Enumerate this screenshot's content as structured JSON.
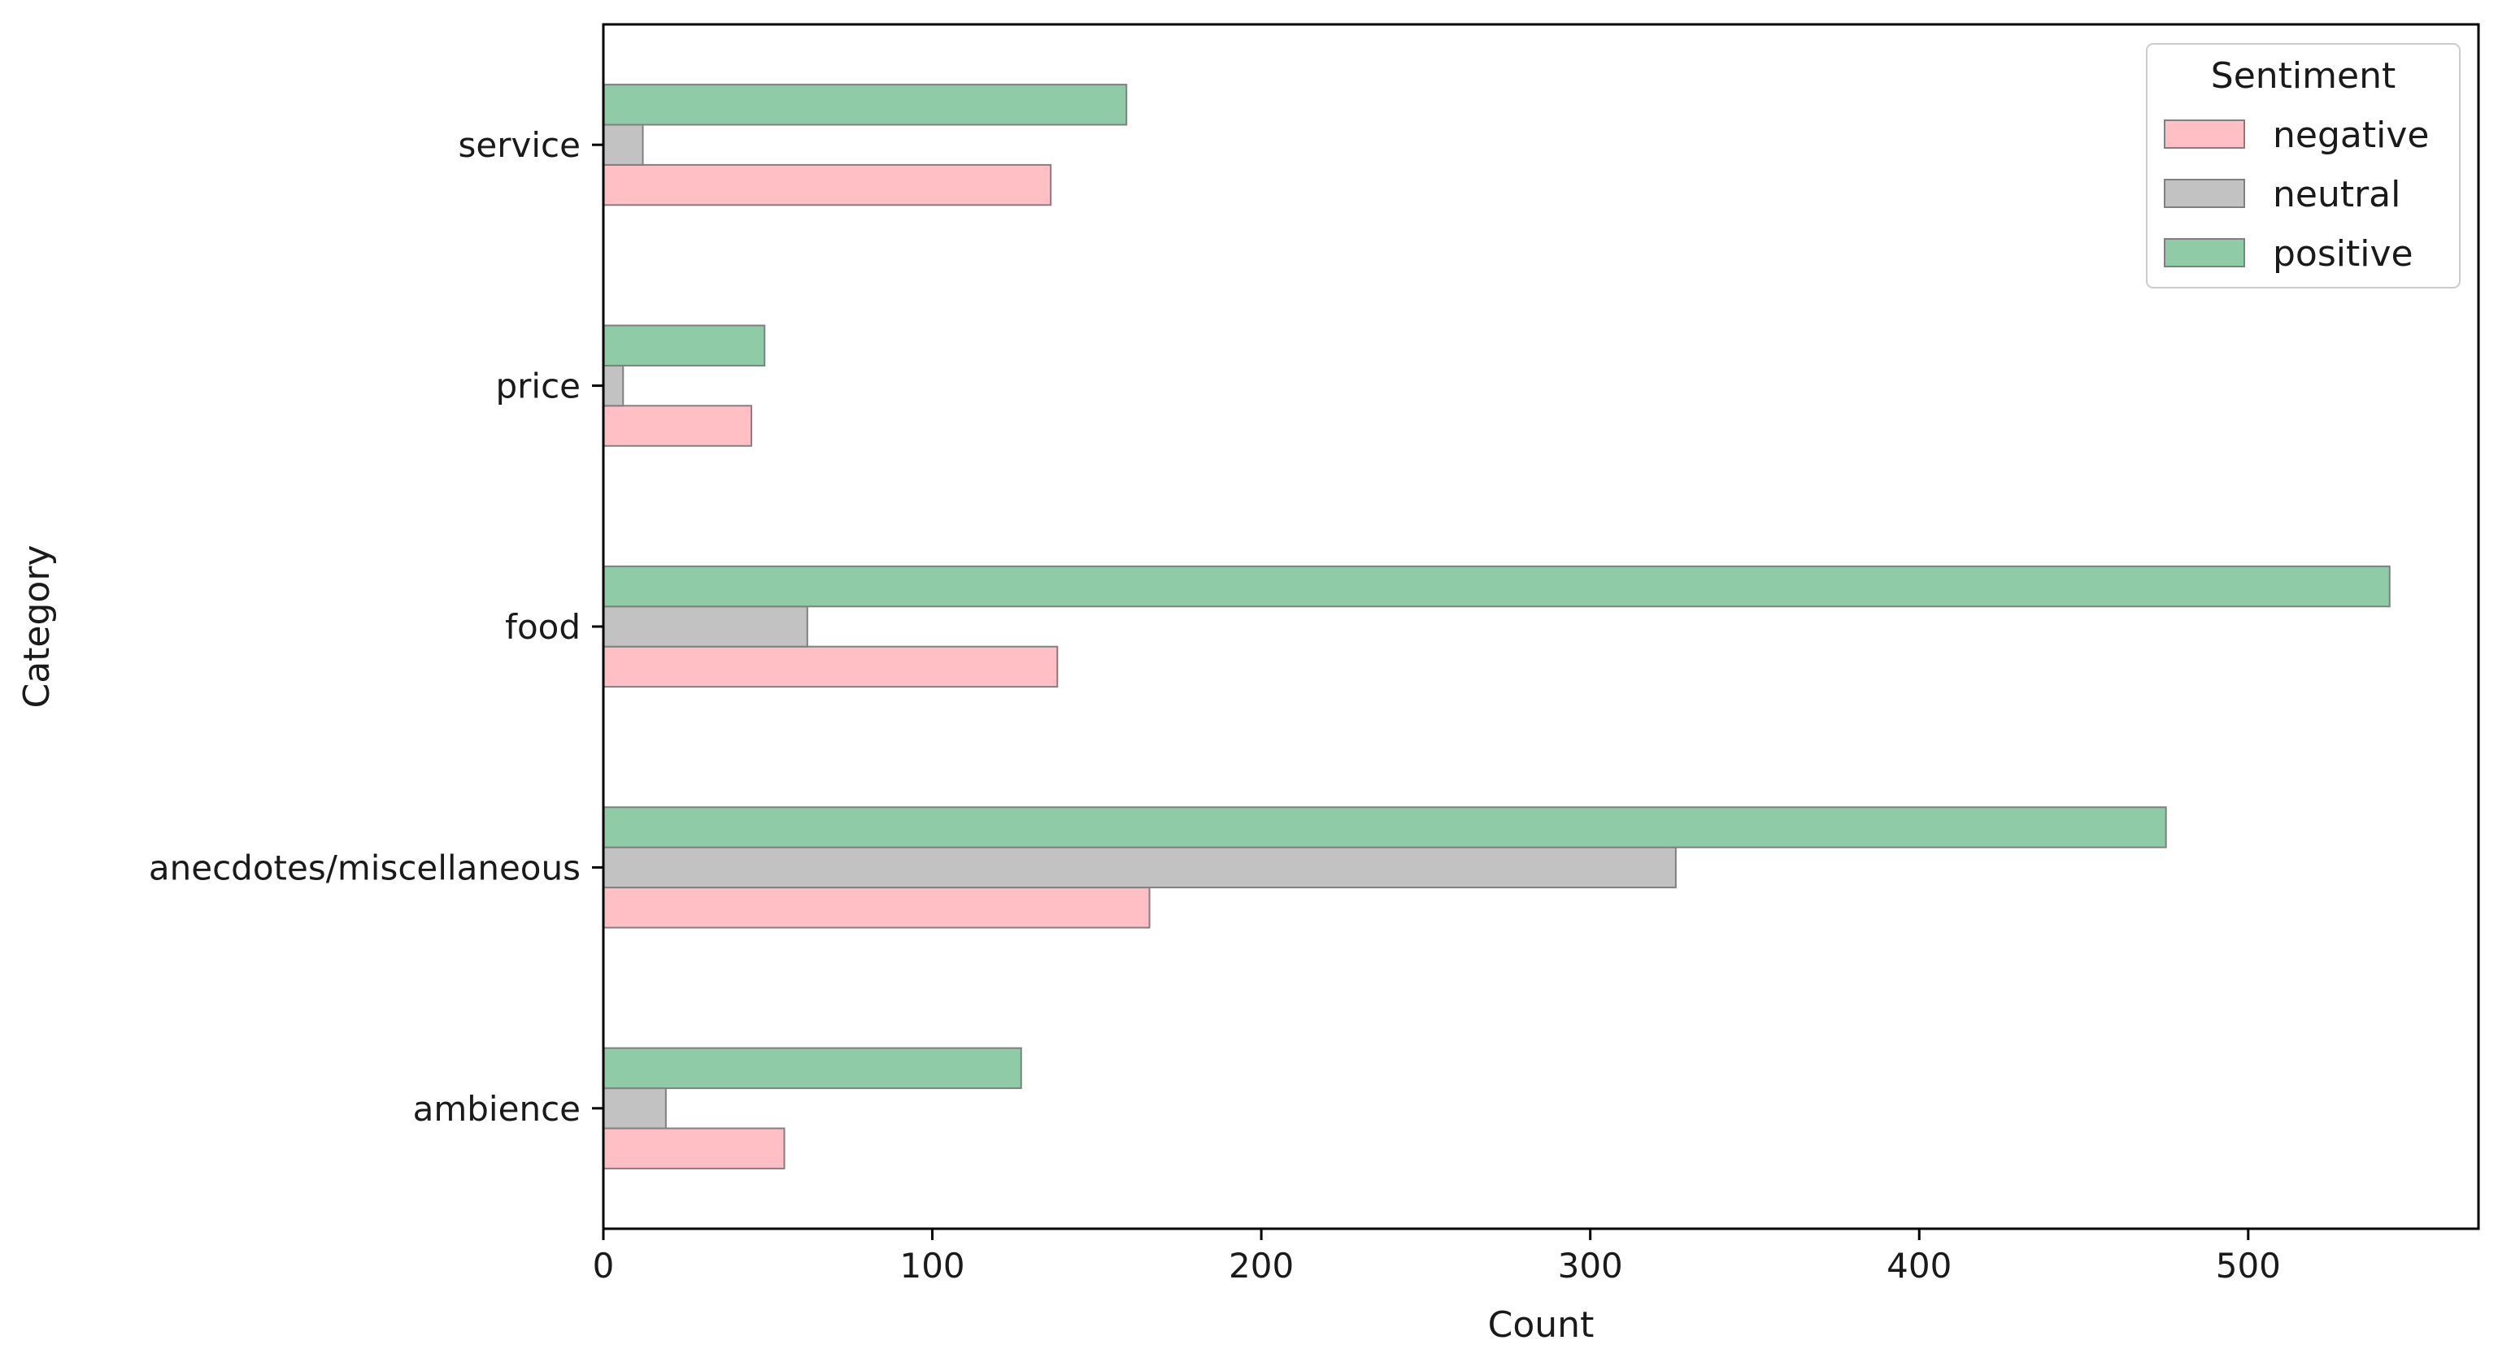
{
  "chart_data": {
    "type": "bar",
    "orientation": "horizontal",
    "title": "",
    "xlabel": "Count",
    "ylabel": "Category",
    "categories": [
      "ambience",
      "anecdotes/miscellaneous",
      "food",
      "price",
      "service"
    ],
    "xlim": [
      0,
      570
    ],
    "xticks": [
      0,
      100,
      200,
      300,
      400,
      500
    ],
    "grid": false,
    "series": [
      {
        "name": "negative",
        "color": "#ffbfc4",
        "values": [
          55,
          166,
          138,
          45,
          136
        ]
      },
      {
        "name": "neutral",
        "color": "#c2c2c2",
        "values": [
          19,
          326,
          62,
          6,
          12
        ]
      },
      {
        "name": "positive",
        "color": "#8fcba6",
        "values": [
          127,
          475,
          543,
          49,
          159
        ]
      }
    ],
    "legend": {
      "title": "Sentiment",
      "placement": "top-right"
    },
    "edge_color": "#808080"
  }
}
